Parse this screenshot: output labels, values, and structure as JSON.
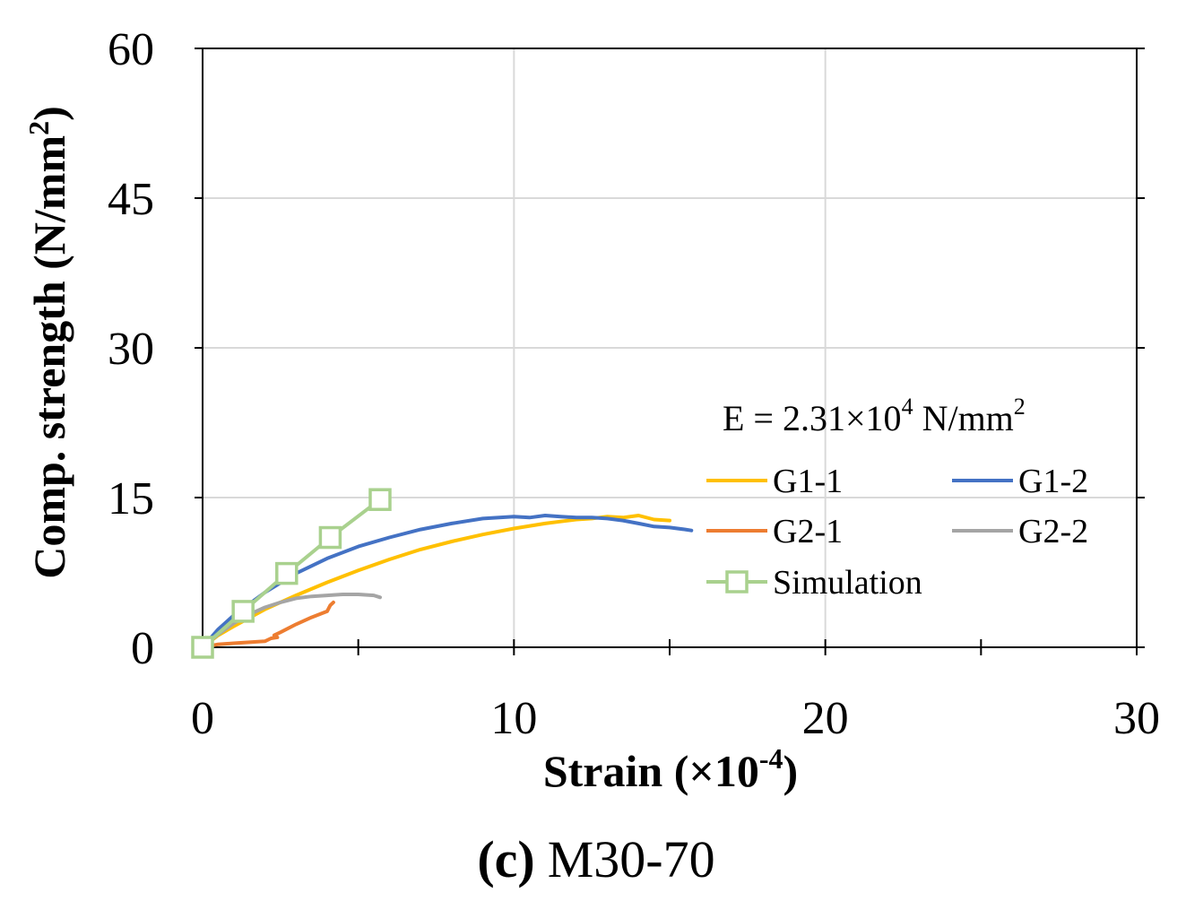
{
  "chart_data": {
    "type": "line",
    "title": "",
    "caption_label": "(c)",
    "caption_text": "M30-70",
    "xlabel_main": "Strain (×10",
    "xlabel_sup": "-4",
    "xlabel_end": ")",
    "ylabel_main": "Comp. strength (N/mm",
    "ylabel_sup": "2",
    "ylabel_end": ")",
    "xlim": [
      0,
      30
    ],
    "ylim": [
      0,
      60
    ],
    "xticks": [
      0,
      10,
      20,
      30
    ],
    "yticks": [
      0,
      15,
      30,
      45,
      60
    ],
    "xtick_labels": [
      "0",
      "10",
      "20",
      "30"
    ],
    "ytick_labels": [
      "0",
      "15",
      "30",
      "45",
      "60"
    ],
    "x_minor_ticks": [
      5,
      15,
      25
    ],
    "grid": true,
    "annotation": {
      "text_main": "E = 2.31×10",
      "exp1": "4",
      "text_mid": " N/mm",
      "exp2": "2"
    },
    "legend_position": "right",
    "series": [
      {
        "name": "G1-1",
        "color": "#FFC000",
        "x": [
          0,
          0.5,
          1,
          2,
          3,
          4,
          5,
          6,
          7,
          8,
          9,
          10,
          11,
          11.5,
          12,
          12.5,
          13,
          13.5,
          14,
          14.5,
          15
        ],
        "y": [
          0,
          1.2,
          2.1,
          3.8,
          5.2,
          6.5,
          7.7,
          8.8,
          9.8,
          10.6,
          11.3,
          11.9,
          12.4,
          12.6,
          12.8,
          12.9,
          13.1,
          13.0,
          13.2,
          12.8,
          12.7
        ]
      },
      {
        "name": "G1-2",
        "color": "#4472C4",
        "x": [
          0,
          0.5,
          1,
          2,
          3,
          4,
          5,
          6,
          7,
          8,
          9,
          10,
          10.5,
          11,
          11.5,
          12,
          12.5,
          13,
          13.5,
          14,
          14.5,
          15,
          15.5,
          15.7
        ],
        "y": [
          0,
          1.8,
          3.2,
          5.5,
          7.4,
          8.9,
          10.1,
          11.0,
          11.8,
          12.4,
          12.9,
          13.1,
          13.0,
          13.2,
          13.1,
          13.0,
          13.0,
          12.9,
          12.7,
          12.4,
          12.1,
          12.0,
          11.8,
          11.7
        ]
      },
      {
        "name": "G2-1",
        "color": "#ED7D31",
        "x": [
          0,
          0.5,
          1,
          1.5,
          2,
          2.2,
          2.4,
          2.3,
          2.5,
          3,
          3.5,
          4,
          4.1,
          4.2
        ],
        "y": [
          0,
          0.3,
          0.4,
          0.5,
          0.6,
          0.9,
          1.0,
          1.2,
          1.5,
          2.3,
          3.0,
          3.6,
          4.2,
          4.5
        ]
      },
      {
        "name": "G2-2",
        "color": "#A5A5A5",
        "x": [
          0,
          0.5,
          1,
          1.5,
          2,
          2.5,
          3,
          3.5,
          4,
          4.5,
          5,
          5.5,
          5.7
        ],
        "y": [
          0,
          1.3,
          2.4,
          3.3,
          4.0,
          4.5,
          4.9,
          5.1,
          5.2,
          5.3,
          5.3,
          5.2,
          5.0
        ]
      },
      {
        "name": "Simulation",
        "color": "#A9D18E",
        "marker": "square",
        "x": [
          0,
          1.3,
          2.7,
          4.1,
          5.7
        ],
        "y": [
          0,
          3.6,
          7.4,
          11.0,
          14.8
        ]
      }
    ]
  }
}
